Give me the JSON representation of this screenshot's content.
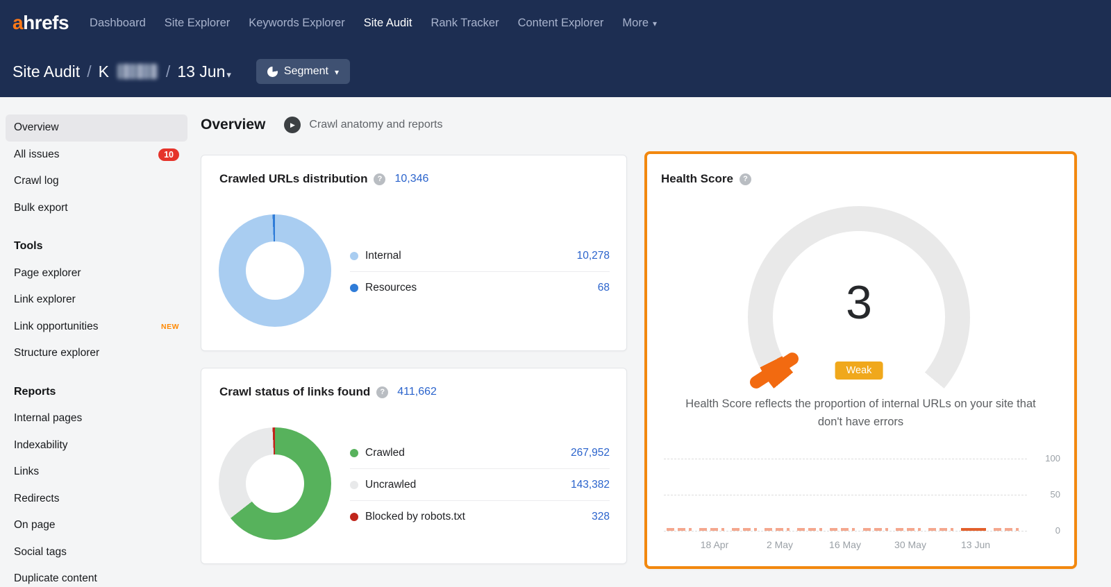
{
  "icons": {
    "help": "?",
    "play": "▶",
    "caret_down": "▾"
  },
  "navbar": {
    "logo": {
      "accent": "a",
      "rest": "hrefs"
    },
    "items": [
      {
        "label": "Dashboard"
      },
      {
        "label": "Site Explorer"
      },
      {
        "label": "Keywords Explorer"
      },
      {
        "label": "Site Audit"
      },
      {
        "label": "Rank Tracker"
      },
      {
        "label": "Content Explorer"
      },
      {
        "label": "More"
      }
    ],
    "active_item": "Site Audit"
  },
  "breadcrumb": {
    "section": "Site Audit",
    "separator": "/",
    "project_initial": "K",
    "crawl_date": "13 Jun",
    "segment_button_label": "Segment"
  },
  "sidebar": {
    "active_item": "Overview",
    "main_items": [
      {
        "label": "Overview"
      },
      {
        "label": "All issues",
        "badge": "10"
      },
      {
        "label": "Crawl log"
      },
      {
        "label": "Bulk export"
      }
    ],
    "sections": [
      {
        "header": "Tools",
        "items": [
          {
            "label": "Page explorer"
          },
          {
            "label": "Link explorer"
          },
          {
            "label": "Link opportunities",
            "tag": "NEW"
          },
          {
            "label": "Structure explorer"
          }
        ]
      },
      {
        "header": "Reports",
        "items": [
          {
            "label": "Internal pages"
          },
          {
            "label": "Indexability"
          },
          {
            "label": "Links"
          },
          {
            "label": "Redirects"
          },
          {
            "label": "On page"
          },
          {
            "label": "Social tags"
          },
          {
            "label": "Duplicate content"
          }
        ]
      }
    ]
  },
  "main": {
    "title": "Overview",
    "subtitle_link": "Crawl anatomy and reports"
  },
  "crawled_urls_card": {
    "title": "Crawled URLs distribution",
    "total": "10,346",
    "chart_data": {
      "type": "pie",
      "title": "Crawled URLs distribution",
      "total": 10346,
      "segments": [
        {
          "label": "Internal",
          "value": 10278,
          "display": "10,278",
          "color": "#a9cdf1"
        },
        {
          "label": "Resources",
          "value": 68,
          "display": "68",
          "color": "#2f7cd8"
        }
      ]
    }
  },
  "crawl_status_card": {
    "title": "Crawl status of links found",
    "total": "411,662",
    "chart_data": {
      "type": "pie",
      "title": "Crawl status of links found",
      "total": 411662,
      "segments": [
        {
          "label": "Crawled",
          "value": 267952,
          "display": "267,952",
          "color": "#57b25c"
        },
        {
          "label": "Uncrawled",
          "value": 143382,
          "display": "143,382",
          "color": "#e8e9ea"
        },
        {
          "label": "Blocked by robots.txt",
          "value": 328,
          "display": "328",
          "color": "#c0251b"
        }
      ]
    }
  },
  "health_card": {
    "title": "Health Score",
    "score": "3",
    "score_value": 3,
    "rating": "Weak",
    "rating_color": "#f0a81c",
    "gauge_color": "#f26a10",
    "gauge_track_color": "#e9e9e9",
    "description": "Health Score reflects the proportion of internal URLs on your site that don't have errors",
    "chart_data": {
      "type": "bar",
      "ylabel": "Health Score",
      "ylim": [
        0,
        100
      ],
      "y_ticks": [
        "100",
        "50",
        "0"
      ],
      "x_labels": [
        "18 Apr",
        "2 May",
        "16 May",
        "30 May",
        "13 Jun"
      ],
      "bar_color_past": "#f4a78e",
      "bar_color_current": "#e2602c",
      "bars": [
        {
          "value": 3,
          "style": "dashed"
        },
        {
          "value": 3,
          "style": "dashed"
        },
        {
          "value": 3,
          "style": "dashed"
        },
        {
          "value": 3,
          "style": "dashed"
        },
        {
          "value": 3,
          "style": "dashed"
        },
        {
          "value": 3,
          "style": "dashed"
        },
        {
          "value": 3,
          "style": "dashed"
        },
        {
          "value": 3,
          "style": "dashed"
        },
        {
          "value": 3,
          "style": "dashed"
        },
        {
          "value": 3,
          "style": "solid"
        },
        {
          "value": 3,
          "style": "dashed"
        }
      ]
    }
  }
}
